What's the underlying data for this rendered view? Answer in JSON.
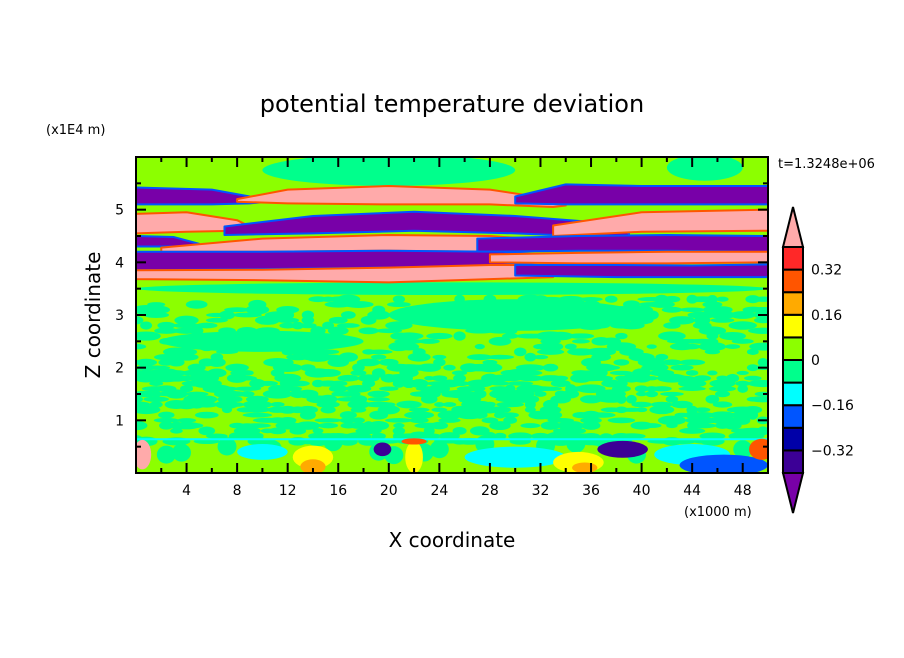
{
  "chart_data": {
    "type": "heatmap",
    "subtype": "filled-contour",
    "title": "potential temperature deviation",
    "xlabel": "X coordinate",
    "ylabel": "Z coordinate",
    "x_units": "(x1000 m)",
    "y_units": "(x1E4 m)",
    "time_label": "t=1.3248e+06",
    "xlim": [
      0,
      50
    ],
    "ylim": [
      0,
      6
    ],
    "xticks": [
      4,
      8,
      12,
      16,
      20,
      24,
      28,
      32,
      36,
      40,
      44,
      48
    ],
    "xtick_labels": [
      "4",
      "8",
      "12",
      "16",
      "20",
      "24",
      "28",
      "32",
      "36",
      "40",
      "44",
      "48"
    ],
    "yticks": [
      1,
      2,
      3,
      4,
      5
    ],
    "ytick_labels": [
      "1",
      "2",
      "3",
      "4",
      "5"
    ],
    "colorbar": {
      "levels": [
        -0.4,
        -0.32,
        -0.24,
        -0.16,
        -0.08,
        0,
        0.08,
        0.16,
        0.24,
        0.32,
        0.4
      ],
      "colors": [
        "#3c0096",
        "#0000a8",
        "#0055ff",
        "#00ffff",
        "#00ff8c",
        "#8cff00",
        "#ffff00",
        "#ffaa00",
        "#ff5500",
        "#ff2828"
      ],
      "under_color": "#7800a8",
      "over_color": "#ffaaaa",
      "tick_values": [
        -0.32,
        -0.16,
        0,
        0.16,
        0.32
      ],
      "tick_labels": [
        "−0.32",
        "−0.16",
        "0",
        "0.16",
        "0.32"
      ]
    },
    "layers": [
      {
        "value": -0.45,
        "x": [
          0,
          6,
          9,
          10
        ],
        "top": [
          5.42,
          5.38,
          5.25,
          5.15
        ],
        "bot": [
          5.1,
          5.1,
          5.12,
          5.14
        ]
      },
      {
        "value": 0.45,
        "x": [
          8,
          12,
          20,
          28,
          33,
          34
        ],
        "top": [
          5.2,
          5.38,
          5.45,
          5.38,
          5.2,
          5.1
        ],
        "bot": [
          5.15,
          5.12,
          5.1,
          5.1,
          5.05,
          5.08
        ]
      },
      {
        "value": -0.45,
        "x": [
          30,
          34,
          40,
          50
        ],
        "top": [
          5.25,
          5.48,
          5.45,
          5.45
        ],
        "bot": [
          5.12,
          5.1,
          5.1,
          5.1
        ]
      },
      {
        "value": 0.45,
        "x": [
          0,
          4,
          8,
          9
        ],
        "top": [
          4.92,
          4.95,
          4.8,
          4.68
        ],
        "bot": [
          4.55,
          4.58,
          4.6,
          4.64
        ]
      },
      {
        "value": -0.45,
        "x": [
          7,
          14,
          22,
          30,
          37,
          39
        ],
        "top": [
          4.68,
          4.88,
          4.96,
          4.88,
          4.75,
          4.55
        ],
        "bot": [
          4.52,
          4.55,
          4.6,
          4.55,
          4.48,
          4.5
        ]
      },
      {
        "value": 0.45,
        "x": [
          33,
          40,
          50
        ],
        "top": [
          4.7,
          4.95,
          5.0
        ],
        "bot": [
          4.5,
          4.58,
          4.6
        ]
      },
      {
        "value": -0.45,
        "x": [
          0,
          3,
          5
        ],
        "top": [
          4.5,
          4.48,
          4.35
        ],
        "bot": [
          4.3,
          4.3,
          4.32
        ]
      },
      {
        "value": 0.45,
        "x": [
          2,
          10,
          20,
          28,
          31
        ],
        "top": [
          4.28,
          4.45,
          4.52,
          4.5,
          4.45
        ],
        "bot": [
          4.2,
          4.2,
          4.22,
          4.2,
          4.22
        ]
      },
      {
        "value": -0.45,
        "x": [
          27,
          35,
          42,
          50
        ],
        "top": [
          4.45,
          4.5,
          4.52,
          4.5
        ],
        "bot": [
          4.2,
          4.22,
          4.22,
          4.2
        ]
      },
      {
        "value": -0.45,
        "x": [
          0,
          10,
          20,
          29,
          32
        ],
        "top": [
          4.2,
          4.2,
          4.22,
          4.2,
          4.15
        ],
        "bot": [
          3.85,
          3.87,
          3.9,
          3.95,
          4.0
        ]
      },
      {
        "value": 0.45,
        "x": [
          28,
          35,
          42,
          50
        ],
        "top": [
          4.15,
          4.18,
          4.2,
          4.2
        ],
        "bot": [
          4.0,
          3.98,
          3.98,
          4.0
        ]
      },
      {
        "value": 0.45,
        "x": [
          0,
          10,
          20,
          28,
          33
        ],
        "top": [
          3.85,
          3.86,
          3.9,
          3.95,
          3.95
        ],
        "bot": [
          3.68,
          3.66,
          3.62,
          3.68,
          3.72
        ]
      },
      {
        "value": -0.45,
        "x": [
          30,
          38,
          44,
          50
        ],
        "top": [
          3.95,
          3.95,
          3.94,
          3.96
        ],
        "bot": [
          3.75,
          3.72,
          3.72,
          3.72
        ]
      }
    ],
    "patches": [
      {
        "x": 0.5,
        "z": 0.35,
        "rx": 0.7,
        "rz": 0.28,
        "value": 0.45
      },
      {
        "x": 10,
        "z": 0.4,
        "rx": 2,
        "rz": 0.15,
        "value": -0.1
      },
      {
        "x": 14,
        "z": 0.3,
        "rx": 1.6,
        "rz": 0.22,
        "value": 0.12
      },
      {
        "x": 14,
        "z": 0.12,
        "rx": 1,
        "rz": 0.14,
        "value": 0.2
      },
      {
        "x": 19.5,
        "z": 0.45,
        "rx": 0.7,
        "rz": 0.13,
        "value": -0.33
      },
      {
        "x": 22,
        "z": 0.3,
        "rx": 0.7,
        "rz": 0.3,
        "value": 0.12
      },
      {
        "x": 22,
        "z": 0.6,
        "rx": 1,
        "rz": 0.06,
        "value": 0.3
      },
      {
        "x": 30,
        "z": 0.3,
        "rx": 4,
        "rz": 0.2,
        "value": -0.1
      },
      {
        "x": 35,
        "z": 0.2,
        "rx": 2,
        "rz": 0.2,
        "value": 0.12
      },
      {
        "x": 35.5,
        "z": 0.1,
        "rx": 1,
        "rz": 0.1,
        "value": 0.2
      },
      {
        "x": 38.5,
        "z": 0.45,
        "rx": 2,
        "rz": 0.16,
        "value": -0.33
      },
      {
        "x": 44,
        "z": 0.35,
        "rx": 3,
        "rz": 0.2,
        "value": -0.1
      },
      {
        "x": 46.5,
        "z": 0.15,
        "rx": 3.5,
        "rz": 0.2,
        "value": -0.2
      },
      {
        "x": 49.5,
        "z": 0.45,
        "rx": 1,
        "rz": 0.2,
        "value": 0.3
      },
      {
        "x": 20,
        "z": 5.75,
        "rx": 10,
        "rz": 0.3,
        "value": -0.02
      },
      {
        "x": 45,
        "z": 5.8,
        "rx": 3,
        "rz": 0.25,
        "value": -0.02
      },
      {
        "x": 25,
        "z": 3.5,
        "rx": 25,
        "rz": 0.12,
        "value": -0.02
      },
      {
        "x": 30,
        "z": 3.0,
        "rx": 10,
        "rz": 0.3,
        "value": -0.02
      },
      {
        "x": 10,
        "z": 2.5,
        "rx": 8,
        "rz": 0.2,
        "value": -0.02
      }
    ]
  }
}
